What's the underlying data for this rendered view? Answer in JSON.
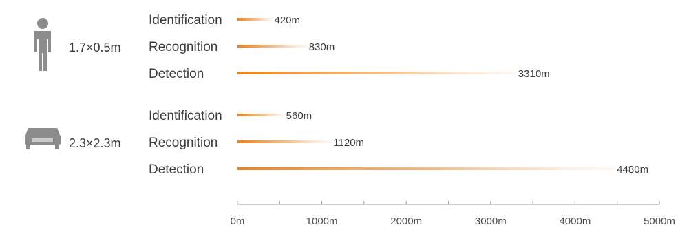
{
  "chart_data": {
    "type": "bar",
    "orientation": "horizontal",
    "x_unit": "m",
    "xlim": [
      0,
      5000
    ],
    "xticks": [
      0,
      1000,
      2000,
      3000,
      4000,
      5000
    ],
    "xtick_labels": [
      "0m",
      "1000m",
      "2000m",
      "3000m",
      "4000m",
      "5000m"
    ],
    "grid": false,
    "groups": [
      {
        "target": "1.7×0.5m",
        "icon": "person-icon",
        "bars": [
          {
            "label": "Identification",
            "value": 420,
            "value_label": "420m"
          },
          {
            "label": "Recognition",
            "value": 830,
            "value_label": "830m"
          },
          {
            "label": "Detection",
            "value": 3310,
            "value_label": "3310m"
          }
        ]
      },
      {
        "target": "2.3×2.3m",
        "icon": "car-icon",
        "bars": [
          {
            "label": "Identification",
            "value": 560,
            "value_label": "560m"
          },
          {
            "label": "Recognition",
            "value": 1120,
            "value_label": "1120m"
          },
          {
            "label": "Detection",
            "value": 4480,
            "value_label": "4480m"
          }
        ]
      }
    ]
  },
  "colors": {
    "bar_start": "#e8821e",
    "bar_end": "#ffffff",
    "icon": "#8c8c8c",
    "axis": "#9a9a9a",
    "text": "#3c3c3c"
  }
}
